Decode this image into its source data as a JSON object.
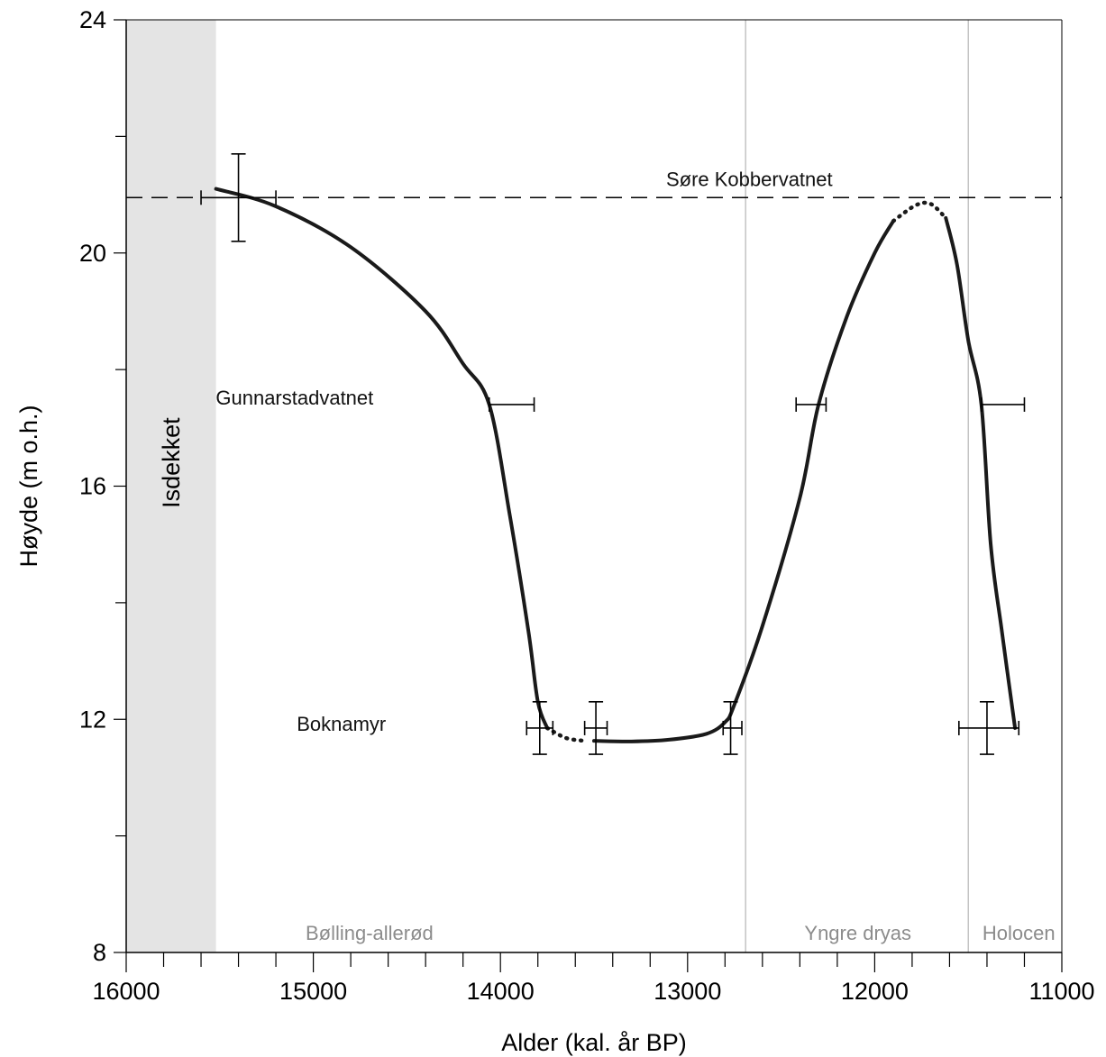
{
  "chart_data": {
    "type": "line",
    "title": "",
    "xlabel": "Alder (kal. år BP)",
    "ylabel": "Høyde (m o.h.)",
    "xlim": [
      16000,
      11000
    ],
    "ylim": [
      8,
      24
    ],
    "x_reversed": true,
    "x_ticks": [
      16000,
      15000,
      14000,
      13000,
      12000,
      11000
    ],
    "y_ticks": [
      8,
      12,
      16,
      20,
      24
    ],
    "x_tick_labels": [
      "16000",
      "15000",
      "14000",
      "13000",
      "12000",
      "11000"
    ],
    "y_tick_labels": [
      "8",
      "12",
      "16",
      "20",
      "24"
    ],
    "grid": false,
    "threshold_line": {
      "y": 20.95,
      "style": "dashed",
      "label": "Søre Kobbervatnet"
    },
    "ice_cover": {
      "x_from": 16000,
      "x_to": 15520,
      "label": "Isdekket",
      "color": "#e4e4e4"
    },
    "period_boundaries": [
      12690,
      11500
    ],
    "periods": [
      {
        "label": "Bølling-allerød",
        "x_center": 14700
      },
      {
        "label": "Yngre dryas",
        "x_center": 12090
      },
      {
        "label": "Holocen",
        "x_center": 11230
      }
    ],
    "site_labels": [
      {
        "label": "Gunnarstadvatnet",
        "x": 15100,
        "y": 17.4
      },
      {
        "label": "Boknamyr",
        "x": 14850,
        "y": 11.8
      }
    ],
    "curve_segments": [
      {
        "style": "solid",
        "points": [
          [
            15520,
            21.1
          ],
          [
            15200,
            20.8
          ],
          [
            14800,
            20.1
          ],
          [
            14400,
            19.0
          ],
          [
            14200,
            18.1
          ],
          [
            14060,
            17.4
          ],
          [
            13950,
            15.5
          ],
          [
            13850,
            13.5
          ],
          [
            13800,
            12.3
          ],
          [
            13750,
            11.85
          ]
        ]
      },
      {
        "style": "dotted",
        "points": [
          [
            13750,
            11.85
          ],
          [
            13650,
            11.68
          ],
          [
            13550,
            11.63
          ]
        ]
      },
      {
        "style": "solid",
        "points": [
          [
            13500,
            11.63
          ],
          [
            13300,
            11.62
          ],
          [
            13100,
            11.65
          ],
          [
            12900,
            11.75
          ],
          [
            12800,
            11.95
          ],
          [
            12750,
            12.25
          ],
          [
            12600,
            13.6
          ],
          [
            12400,
            15.8
          ],
          [
            12300,
            17.4
          ],
          [
            12150,
            18.9
          ],
          [
            12000,
            20.0
          ],
          [
            11900,
            20.55
          ]
        ]
      },
      {
        "style": "dotted",
        "points": [
          [
            11900,
            20.55
          ],
          [
            11780,
            20.82
          ],
          [
            11700,
            20.84
          ],
          [
            11620,
            20.6
          ]
        ]
      },
      {
        "style": "solid",
        "points": [
          [
            11620,
            20.6
          ],
          [
            11560,
            19.8
          ],
          [
            11500,
            18.5
          ],
          [
            11430,
            17.4
          ],
          [
            11380,
            15.0
          ],
          [
            11320,
            13.5
          ],
          [
            11250,
            11.85
          ]
        ]
      }
    ],
    "error_bars": [
      {
        "x": 15400,
        "y": 20.95,
        "xerr": [
          15600,
          15200
        ],
        "yerr": [
          20.2,
          21.7
        ]
      },
      {
        "x": 14060,
        "y": 17.4,
        "xerr": [
          14060,
          13820
        ],
        "yerr": null
      },
      {
        "x": 12300,
        "y": 17.4,
        "xerr": [
          12420,
          12260
        ],
        "yerr": null
      },
      {
        "x": 11430,
        "y": 17.4,
        "xerr": [
          11430,
          11200
        ],
        "yerr": null
      },
      {
        "x": 13790,
        "y": 11.85,
        "xerr": [
          13860,
          13720
        ],
        "yerr": [
          11.4,
          12.3
        ]
      },
      {
        "x": 13490,
        "y": 11.85,
        "xerr": [
          13550,
          13430
        ],
        "yerr": [
          11.4,
          12.3
        ]
      },
      {
        "x": 12770,
        "y": 11.85,
        "xerr": [
          12810,
          12710
        ],
        "yerr": [
          11.4,
          12.3
        ]
      },
      {
        "x": 11400,
        "y": 11.85,
        "xerr": [
          11550,
          11230
        ],
        "yerr": [
          11.4,
          12.3
        ]
      }
    ]
  }
}
